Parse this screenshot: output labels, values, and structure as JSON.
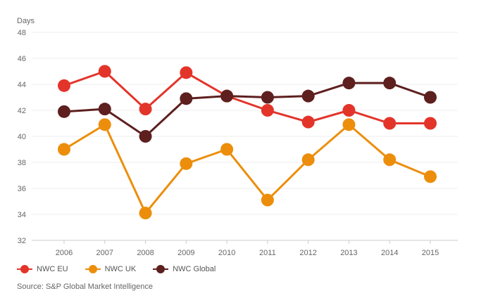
{
  "chart_data": {
    "type": "line",
    "ylabel": "Days",
    "ylim": [
      32,
      48
    ],
    "yticks": [
      32,
      34,
      36,
      38,
      40,
      42,
      44,
      46,
      48
    ],
    "x": [
      "2006",
      "2007",
      "2008",
      "2009",
      "2010",
      "2011",
      "2012",
      "2013",
      "2014",
      "2015"
    ],
    "grid": true,
    "legend_position": "bottom-left",
    "series": [
      {
        "name": "NWC EU",
        "color": "#e3342a",
        "values": [
          43.9,
          45.0,
          42.1,
          44.9,
          43.1,
          42.0,
          41.1,
          42.0,
          41.0,
          41.0
        ]
      },
      {
        "name": "NWC UK",
        "color": "#ec8e0b",
        "values": [
          39.0,
          40.9,
          34.1,
          37.9,
          39.0,
          35.1,
          38.2,
          40.9,
          38.2,
          36.9
        ]
      },
      {
        "name": "NWC Global",
        "color": "#5e1f1f",
        "values": [
          41.9,
          42.1,
          40.0,
          42.9,
          43.1,
          43.0,
          43.1,
          44.1,
          44.1,
          43.0
        ]
      }
    ]
  },
  "source": "Source: S&P Global Market Intelligence"
}
